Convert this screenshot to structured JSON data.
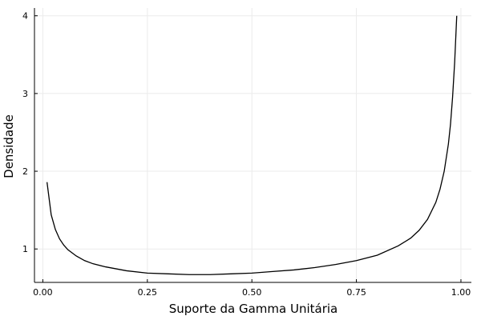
{
  "chart_data": {
    "type": "line",
    "xlabel": "Suporte da Gamma Unitária",
    "ylabel": "Densidade",
    "xlim": [
      -0.02,
      1.025
    ],
    "ylim": [
      0.57,
      4.1
    ],
    "xticks": [
      0.0,
      0.25,
      0.5,
      0.75,
      1.0
    ],
    "xtick_labels": [
      "0.00",
      "0.25",
      "0.50",
      "0.75",
      "1.00"
    ],
    "yticks": [
      1,
      2,
      3,
      4
    ],
    "ytick_labels": [
      "1",
      "2",
      "3",
      "4"
    ],
    "grid": true,
    "legend": "none",
    "line_color": "#000000",
    "series": [
      {
        "x": [
          0.01,
          0.02,
          0.03,
          0.04,
          0.05,
          0.06,
          0.08,
          0.1,
          0.12,
          0.15,
          0.2,
          0.25,
          0.3,
          0.35,
          0.4,
          0.45,
          0.5,
          0.55,
          0.6,
          0.65,
          0.7,
          0.75,
          0.8,
          0.85,
          0.88,
          0.9,
          0.92,
          0.94,
          0.95,
          0.96,
          0.97,
          0.975,
          0.98,
          0.985,
          0.99
        ],
        "y": [
          1.86,
          1.44,
          1.25,
          1.13,
          1.05,
          0.99,
          0.91,
          0.85,
          0.81,
          0.77,
          0.72,
          0.69,
          0.68,
          0.67,
          0.67,
          0.68,
          0.69,
          0.71,
          0.73,
          0.76,
          0.8,
          0.85,
          0.92,
          1.04,
          1.14,
          1.24,
          1.38,
          1.6,
          1.77,
          2.0,
          2.35,
          2.6,
          2.95,
          3.4,
          4.0
        ]
      }
    ]
  }
}
